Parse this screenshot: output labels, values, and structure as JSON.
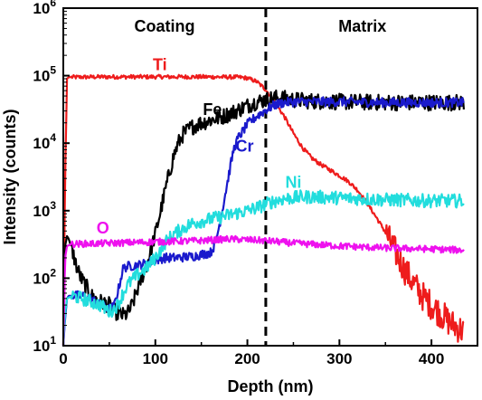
{
  "chart_data": {
    "type": "line",
    "xlabel": "Depth (nm)",
    "ylabel": "Intensity (counts)",
    "yscale": "log",
    "xlim": [
      0,
      450
    ],
    "ylim": [
      10,
      1000000
    ],
    "grid": false,
    "x_ticks": [
      {
        "value": 0,
        "label": "0"
      },
      {
        "value": 100,
        "label": "100"
      },
      {
        "value": 200,
        "label": "200"
      },
      {
        "value": 300,
        "label": "300"
      },
      {
        "value": 400,
        "label": "400"
      }
    ],
    "y_ticks": [
      {
        "value": 10,
        "base": "10",
        "exp": "1"
      },
      {
        "value": 100,
        "base": "10",
        "exp": "2"
      },
      {
        "value": 1000,
        "base": "10",
        "exp": "3"
      },
      {
        "value": 10000,
        "base": "10",
        "exp": "4"
      },
      {
        "value": 100000,
        "base": "10",
        "exp": "5"
      },
      {
        "value": 1000000,
        "base": "10",
        "exp": "6"
      }
    ],
    "regions": [
      {
        "label": "Coating",
        "x_center": 110
      },
      {
        "label": "Matrix",
        "x_center": 325
      }
    ],
    "divider_x": 220,
    "series": [
      {
        "name": "Ti",
        "color": "#ee1c1c",
        "label_x": 105,
        "label_y": 120000,
        "noise": 0.03,
        "points": [
          [
            0,
            10
          ],
          [
            2,
            3000
          ],
          [
            4,
            90000
          ],
          [
            6,
            95000
          ],
          [
            50,
            96000
          ],
          [
            100,
            96000
          ],
          [
            150,
            96000
          ],
          [
            190,
            95000
          ],
          [
            200,
            92000
          ],
          [
            210,
            82000
          ],
          [
            220,
            62000
          ],
          [
            230,
            40000
          ],
          [
            240,
            25000
          ],
          [
            250,
            14000
          ],
          [
            260,
            8500
          ],
          [
            270,
            6000
          ],
          [
            280,
            4800
          ],
          [
            290,
            4000
          ],
          [
            300,
            3300
          ],
          [
            310,
            2700
          ],
          [
            320,
            2000
          ],
          [
            330,
            1300
          ],
          [
            340,
            800
          ],
          [
            350,
            480
          ],
          [
            360,
            260
          ],
          [
            370,
            140
          ],
          [
            380,
            85
          ],
          [
            390,
            55
          ],
          [
            400,
            40
          ],
          [
            410,
            30
          ],
          [
            420,
            22
          ],
          [
            430,
            18
          ],
          [
            436,
            16
          ]
        ]
      },
      {
        "name": "Fe",
        "color": "#000000",
        "label_x": 162,
        "label_y": 26000,
        "noise": 0.12,
        "points": [
          [
            0,
            10
          ],
          [
            2,
            300
          ],
          [
            4,
            420
          ],
          [
            6,
            380
          ],
          [
            10,
            250
          ],
          [
            15,
            140
          ],
          [
            20,
            95
          ],
          [
            25,
            75
          ],
          [
            30,
            55
          ],
          [
            40,
            45
          ],
          [
            50,
            40
          ],
          [
            55,
            33
          ],
          [
            60,
            30
          ],
          [
            65,
            28
          ],
          [
            70,
            30
          ],
          [
            75,
            40
          ],
          [
            80,
            65
          ],
          [
            85,
            100
          ],
          [
            90,
            150
          ],
          [
            95,
            260
          ],
          [
            100,
            450
          ],
          [
            105,
            900
          ],
          [
            110,
            1800
          ],
          [
            115,
            3500
          ],
          [
            120,
            6500
          ],
          [
            125,
            10000
          ],
          [
            130,
            13500
          ],
          [
            140,
            17500
          ],
          [
            150,
            20000
          ],
          [
            160,
            22000
          ],
          [
            170,
            24000
          ],
          [
            180,
            27000
          ],
          [
            190,
            31000
          ],
          [
            200,
            36000
          ],
          [
            210,
            41000
          ],
          [
            220,
            44000
          ],
          [
            230,
            47000
          ],
          [
            240,
            46000
          ],
          [
            250,
            44000
          ],
          [
            260,
            43000
          ],
          [
            270,
            42000
          ],
          [
            300,
            41000
          ],
          [
            350,
            40000
          ],
          [
            400,
            40000
          ],
          [
            436,
            40000
          ]
        ]
      },
      {
        "name": "Cr",
        "color": "#1a1acc",
        "label_x": 197,
        "label_y": 7500,
        "noise": 0.07,
        "points": [
          [
            0,
            10
          ],
          [
            2,
            25
          ],
          [
            4,
            50
          ],
          [
            6,
            55
          ],
          [
            20,
            55
          ],
          [
            30,
            50
          ],
          [
            40,
            40
          ],
          [
            50,
            35
          ],
          [
            55,
            38
          ],
          [
            60,
            70
          ],
          [
            65,
            140
          ],
          [
            70,
            150
          ],
          [
            80,
            155
          ],
          [
            90,
            165
          ],
          [
            100,
            185
          ],
          [
            110,
            200
          ],
          [
            120,
            200
          ],
          [
            140,
            210
          ],
          [
            160,
            240
          ],
          [
            165,
            320
          ],
          [
            170,
            650
          ],
          [
            175,
            1500
          ],
          [
            180,
            3500
          ],
          [
            185,
            8000
          ],
          [
            190,
            12000
          ],
          [
            195,
            15000
          ],
          [
            200,
            19000
          ],
          [
            210,
            25000
          ],
          [
            220,
            31000
          ],
          [
            230,
            37000
          ],
          [
            240,
            40000
          ],
          [
            250,
            41000
          ],
          [
            300,
            41000
          ],
          [
            350,
            40000
          ],
          [
            400,
            40000
          ],
          [
            436,
            40000
          ]
        ]
      },
      {
        "name": "Ni",
        "color": "#22dddd",
        "label_x": 250,
        "label_y": 2200,
        "noise": 0.1,
        "points": [
          [
            0,
            10
          ],
          [
            2,
            30
          ],
          [
            4,
            50
          ],
          [
            10,
            55
          ],
          [
            20,
            50
          ],
          [
            30,
            45
          ],
          [
            40,
            40
          ],
          [
            50,
            32
          ],
          [
            55,
            35
          ],
          [
            60,
            42
          ],
          [
            65,
            60
          ],
          [
            70,
            80
          ],
          [
            80,
            110
          ],
          [
            90,
            140
          ],
          [
            100,
            200
          ],
          [
            110,
            330
          ],
          [
            120,
            450
          ],
          [
            130,
            550
          ],
          [
            140,
            650
          ],
          [
            150,
            700
          ],
          [
            160,
            750
          ],
          [
            170,
            800
          ],
          [
            180,
            860
          ],
          [
            190,
            930
          ],
          [
            200,
            1000
          ],
          [
            210,
            1100
          ],
          [
            220,
            1250
          ],
          [
            230,
            1400
          ],
          [
            240,
            1500
          ],
          [
            250,
            1550
          ],
          [
            260,
            1600
          ],
          [
            270,
            1600
          ],
          [
            300,
            1550
          ],
          [
            350,
            1450
          ],
          [
            400,
            1400
          ],
          [
            436,
            1400
          ]
        ]
      },
      {
        "name": "O",
        "color": "#ee11ee",
        "label_x": 43,
        "label_y": 460,
        "noise": 0.05,
        "points": [
          [
            0,
            10
          ],
          [
            2,
            200
          ],
          [
            4,
            300
          ],
          [
            10,
            320
          ],
          [
            50,
            330
          ],
          [
            100,
            345
          ],
          [
            150,
            360
          ],
          [
            180,
            380
          ],
          [
            200,
            370
          ],
          [
            220,
            360
          ],
          [
            250,
            330
          ],
          [
            300,
            300
          ],
          [
            350,
            280
          ],
          [
            400,
            270
          ],
          [
            436,
            260
          ]
        ]
      }
    ]
  }
}
